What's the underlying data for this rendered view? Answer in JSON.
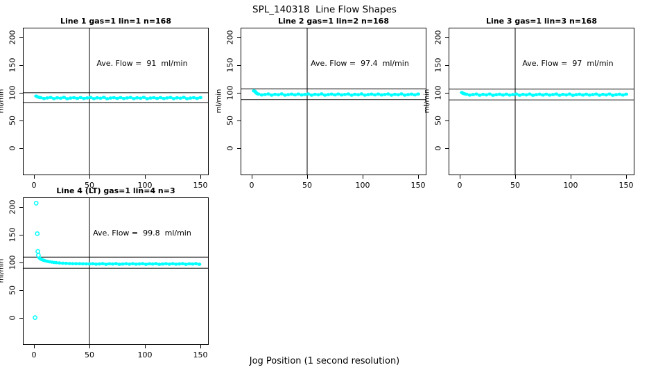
{
  "title": "SPL_140318  Line Flow Shapes",
  "xlabel": "Jog Position (1 second resolution)",
  "colors": {
    "point": "#00ffff",
    "axis": "#000000",
    "background": "#ffffff"
  },
  "chart_data": [
    {
      "type": "scatter",
      "title": "Line 1 gas=1 lin=1 n=168",
      "annotation": "Ave. Flow =  91  ml/min",
      "ave_flow_ml_min": 91,
      "ylabel": "ml/min",
      "vline_x": 50,
      "hlines": [
        100.1,
        81.9
      ],
      "x_ticks": [
        0,
        50,
        100,
        150
      ],
      "y_ticks": [
        0,
        50,
        100,
        150,
        200
      ],
      "xlim": [
        -10,
        157.5
      ],
      "ylim": [
        -48.75,
        217.5
      ],
      "band_points": [
        [
          2,
          94
        ],
        [
          3.5,
          92.5
        ],
        [
          5,
          91.5
        ],
        [
          6,
          91.4
        ],
        [
          9,
          89.8
        ],
        [
          12,
          90.7
        ],
        [
          15,
          91.6
        ],
        [
          18,
          89.5
        ],
        [
          21,
          91
        ],
        [
          24,
          90.2
        ],
        [
          27,
          91.7
        ],
        [
          30,
          89.4
        ],
        [
          33,
          90.5
        ],
        [
          36,
          91.3
        ],
        [
          39,
          89.9
        ],
        [
          42,
          91.4
        ],
        [
          45,
          89.8
        ],
        [
          48,
          90.7
        ],
        [
          51,
          91.6
        ],
        [
          54,
          89.5
        ],
        [
          57,
          91
        ],
        [
          60,
          90.2
        ],
        [
          63,
          91.7
        ],
        [
          66,
          89.4
        ],
        [
          69,
          90.5
        ],
        [
          72,
          91.3
        ],
        [
          75,
          89.9
        ],
        [
          78,
          91.4
        ],
        [
          81,
          89.8
        ],
        [
          84,
          90.7
        ],
        [
          87,
          91.6
        ],
        [
          90,
          89.5
        ],
        [
          93,
          91
        ],
        [
          96,
          90.2
        ],
        [
          99,
          91.7
        ],
        [
          102,
          89.4
        ],
        [
          105,
          90.5
        ],
        [
          108,
          91.3
        ],
        [
          111,
          89.9
        ],
        [
          114,
          91.4
        ],
        [
          117,
          89.8
        ],
        [
          120,
          90.7
        ],
        [
          123,
          91.6
        ],
        [
          126,
          89.5
        ],
        [
          129,
          91
        ],
        [
          132,
          90.2
        ],
        [
          135,
          91.7
        ],
        [
          138,
          89.4
        ],
        [
          141,
          90.5
        ],
        [
          144,
          91.3
        ],
        [
          147,
          89.9
        ],
        [
          150,
          91.4
        ]
      ],
      "outlier_points": []
    },
    {
      "type": "scatter",
      "title": "Line 2 gas=1 lin=2 n=168",
      "annotation": "Ave. Flow =  97.4  ml/min",
      "ave_flow_ml_min": 97.4,
      "ylabel": "ml/min",
      "vline_x": 50,
      "hlines": [
        107.1,
        87.7
      ],
      "x_ticks": [
        0,
        50,
        100,
        150
      ],
      "y_ticks": [
        0,
        50,
        100,
        150,
        200
      ],
      "xlim": [
        -10,
        157.5
      ],
      "ylim": [
        -48.75,
        217.5
      ],
      "band_points": [
        [
          2,
          103.5
        ],
        [
          3,
          102.5
        ],
        [
          4,
          100
        ],
        [
          5,
          98.5
        ],
        [
          6,
          97.7
        ],
        [
          9,
          96.1
        ],
        [
          12,
          97
        ],
        [
          15,
          97.9
        ],
        [
          18,
          95.8
        ],
        [
          21,
          97.3
        ],
        [
          24,
          96.5
        ],
        [
          27,
          98
        ],
        [
          30,
          95.7
        ],
        [
          33,
          96.8
        ],
        [
          36,
          97.6
        ],
        [
          39,
          96.2
        ],
        [
          42,
          97.7
        ],
        [
          45,
          96.1
        ],
        [
          48,
          97
        ],
        [
          51,
          97.9
        ],
        [
          54,
          95.8
        ],
        [
          57,
          97.3
        ],
        [
          60,
          96.5
        ],
        [
          63,
          98
        ],
        [
          66,
          95.7
        ],
        [
          69,
          96.8
        ],
        [
          72,
          97.6
        ],
        [
          75,
          96.2
        ],
        [
          78,
          97.7
        ],
        [
          81,
          96.1
        ],
        [
          84,
          97
        ],
        [
          87,
          97.9
        ],
        [
          90,
          95.8
        ],
        [
          93,
          97.3
        ],
        [
          96,
          96.5
        ],
        [
          99,
          98
        ],
        [
          102,
          95.7
        ],
        [
          105,
          96.8
        ],
        [
          108,
          97.6
        ],
        [
          111,
          96.2
        ],
        [
          114,
          97.7
        ],
        [
          117,
          96.1
        ],
        [
          120,
          97
        ],
        [
          123,
          97.9
        ],
        [
          126,
          95.8
        ],
        [
          129,
          97.3
        ],
        [
          132,
          96.5
        ],
        [
          135,
          98
        ],
        [
          138,
          95.7
        ],
        [
          141,
          96.8
        ],
        [
          144,
          97.6
        ],
        [
          147,
          96.2
        ],
        [
          150,
          97.7
        ]
      ],
      "outlier_points": []
    },
    {
      "type": "scatter",
      "title": "Line 3 gas=1 lin=3 n=168",
      "annotation": "Ave. Flow =  97  ml/min",
      "ave_flow_ml_min": 97,
      "ylabel": "ml/min",
      "vline_x": 50,
      "hlines": [
        106.7,
        87.3
      ],
      "x_ticks": [
        0,
        50,
        100,
        150
      ],
      "y_ticks": [
        0,
        50,
        100,
        150,
        200
      ],
      "xlim": [
        -10,
        157.5
      ],
      "ylim": [
        -48.75,
        217.5
      ],
      "band_points": [
        [
          2,
          100.5
        ],
        [
          3,
          99
        ],
        [
          4.5,
          98
        ],
        [
          6,
          97.5
        ],
        [
          9,
          95.9
        ],
        [
          12,
          96.8
        ],
        [
          15,
          97.7
        ],
        [
          18,
          95.6
        ],
        [
          21,
          97.1
        ],
        [
          24,
          96.3
        ],
        [
          27,
          97.8
        ],
        [
          30,
          95.5
        ],
        [
          33,
          96.6
        ],
        [
          36,
          97.4
        ],
        [
          39,
          96
        ],
        [
          42,
          97.5
        ],
        [
          45,
          95.9
        ],
        [
          48,
          96.8
        ],
        [
          51,
          97.7
        ],
        [
          54,
          95.6
        ],
        [
          57,
          97.1
        ],
        [
          60,
          96.3
        ],
        [
          63,
          97.8
        ],
        [
          66,
          95.5
        ],
        [
          69,
          96.6
        ],
        [
          72,
          97.4
        ],
        [
          75,
          96
        ],
        [
          78,
          97.5
        ],
        [
          81,
          95.9
        ],
        [
          84,
          96.8
        ],
        [
          87,
          97.7
        ],
        [
          90,
          95.6
        ],
        [
          93,
          97.1
        ],
        [
          96,
          96.3
        ],
        [
          99,
          97.8
        ],
        [
          102,
          95.5
        ],
        [
          105,
          96.6
        ],
        [
          108,
          97.4
        ],
        [
          111,
          96
        ],
        [
          114,
          97.5
        ],
        [
          117,
          95.9
        ],
        [
          120,
          96.8
        ],
        [
          123,
          97.7
        ],
        [
          126,
          95.6
        ],
        [
          129,
          97.1
        ],
        [
          132,
          96.3
        ],
        [
          135,
          97.8
        ],
        [
          138,
          95.5
        ],
        [
          141,
          96.6
        ],
        [
          144,
          97.4
        ],
        [
          147,
          96
        ],
        [
          150,
          97.5
        ]
      ],
      "outlier_points": []
    },
    {
      "type": "scatter",
      "title": "Line 4 (LT) gas=1 lin=4 n=3",
      "annotation": "Ave. Flow =  99.8  ml/min",
      "ave_flow_ml_min": 99.8,
      "ylabel": "ml/min",
      "vline_x": 50,
      "hlines": [
        109.8,
        89.8
      ],
      "x_ticks": [
        0,
        50,
        100,
        150
      ],
      "y_ticks": [
        0,
        50,
        100,
        150,
        200
      ],
      "xlim": [
        -10,
        157.5
      ],
      "ylim": [
        -48.75,
        217.5
      ],
      "band_points": [
        [
          5,
          108
        ],
        [
          6,
          106.5
        ],
        [
          7,
          105.4
        ],
        [
          8,
          104.5
        ],
        [
          9,
          103.7
        ],
        [
          10,
          103.1
        ],
        [
          12,
          102.1
        ],
        [
          14,
          101.3
        ],
        [
          16,
          100.7
        ],
        [
          18,
          100.1
        ],
        [
          20,
          99.7
        ],
        [
          23,
          99.1
        ],
        [
          26,
          98.7
        ],
        [
          29,
          98.4
        ],
        [
          32,
          98.1
        ],
        [
          35,
          97.9
        ],
        [
          38,
          97.8
        ],
        [
          41,
          97.7
        ],
        [
          44,
          97.6
        ],
        [
          47,
          97.5
        ],
        [
          50,
          97.4
        ],
        [
          53,
          97.8
        ],
        [
          56,
          97
        ],
        [
          59,
          97.4
        ],
        [
          62,
          97.9
        ],
        [
          65,
          96.8
        ],
        [
          68,
          97.6
        ],
        [
          71,
          97.2
        ],
        [
          74,
          97.9
        ],
        [
          77,
          96.8
        ],
        [
          80,
          97.3
        ],
        [
          83,
          97.7
        ],
        [
          86,
          97
        ],
        [
          89,
          97.8
        ],
        [
          92,
          97
        ],
        [
          95,
          97.4
        ],
        [
          98,
          97.9
        ],
        [
          101,
          96.8
        ],
        [
          104,
          97.6
        ],
        [
          107,
          97.2
        ],
        [
          110,
          97.9
        ],
        [
          113,
          96.8
        ],
        [
          116,
          97.3
        ],
        [
          119,
          97.7
        ],
        [
          122,
          97
        ],
        [
          125,
          97.8
        ],
        [
          128,
          97
        ],
        [
          131,
          97.4
        ],
        [
          134,
          97.9
        ],
        [
          137,
          96.8
        ],
        [
          140,
          97.6
        ],
        [
          143,
          97.2
        ],
        [
          146,
          97.9
        ],
        [
          149,
          96.8
        ]
      ],
      "outlier_points": [
        [
          1,
          0.5
        ],
        [
          2,
          207
        ],
        [
          3,
          152
        ],
        [
          3.5,
          120
        ],
        [
          4,
          113
        ]
      ]
    }
  ]
}
